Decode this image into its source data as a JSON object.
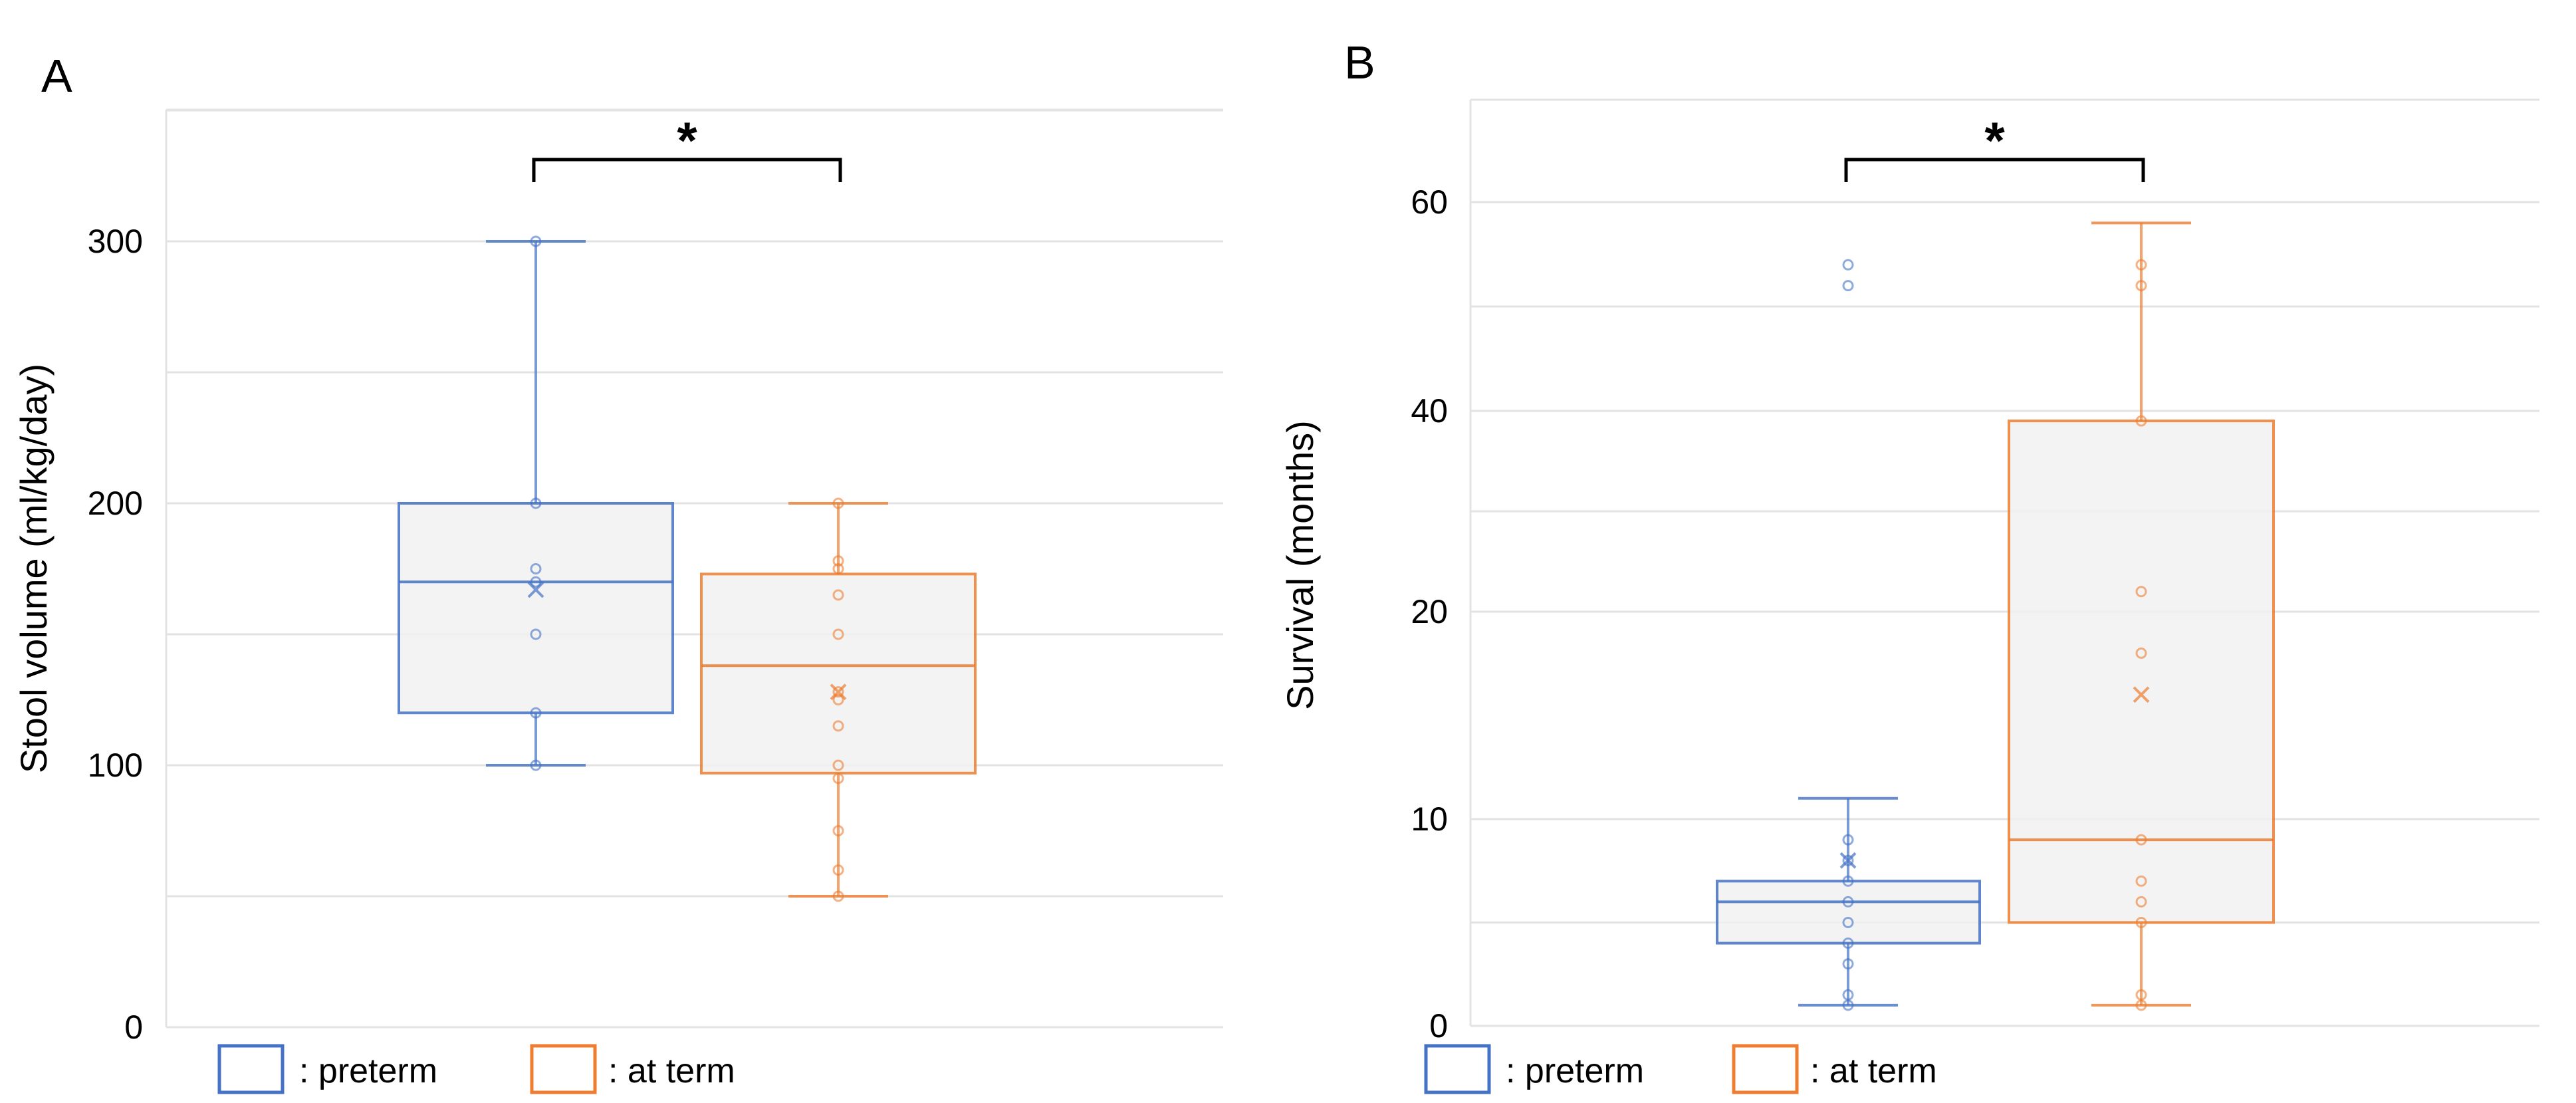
{
  "chart_data": [
    {
      "panel": "A",
      "type": "box",
      "ylabel": "Stool volume (ml/kg/day)",
      "yticks": [
        0,
        100,
        200,
        300
      ],
      "ylim": [
        0,
        350
      ],
      "grid": true,
      "significance": "*",
      "series": [
        {
          "name": ": preterm",
          "color": "#4472C4",
          "whisker_low": 100,
          "q1": 120,
          "median": 170,
          "q3": 200,
          "whisker_high": 300,
          "mean": 167,
          "points": [
            100,
            120,
            150,
            170,
            175,
            200,
            300
          ]
        },
        {
          "name": ": at term",
          "color": "#ED7D31",
          "whisker_low": 50,
          "q1": 97,
          "median": 138,
          "q3": 173,
          "whisker_high": 200,
          "mean": 128,
          "points": [
            50,
            60,
            75,
            95,
            100,
            115,
            125,
            128,
            150,
            165,
            175,
            178,
            200
          ]
        }
      ]
    },
    {
      "panel": "B",
      "type": "box",
      "ylabel": "Survival (months)",
      "yticks": [
        0,
        10,
        20,
        40,
        60
      ],
      "grid": true,
      "significance": "*",
      "series": [
        {
          "name": ": preterm",
          "color": "#4472C4",
          "whisker_low": 1,
          "q1": 4,
          "median": 6,
          "q3": 7,
          "whisker_high": 11,
          "mean": 8,
          "points": [
            1,
            1.5,
            3,
            4,
            5,
            6,
            7,
            8,
            9,
            52,
            54
          ]
        },
        {
          "name": ": at term",
          "color": "#ED7D31",
          "whisker_low": 1,
          "q1": 5,
          "median": 9,
          "q3": 39,
          "whisker_high": 58,
          "mean": 16,
          "points": [
            1,
            1.5,
            5,
            6,
            7,
            9,
            18,
            22,
            39,
            52,
            54
          ]
        }
      ]
    }
  ]
}
